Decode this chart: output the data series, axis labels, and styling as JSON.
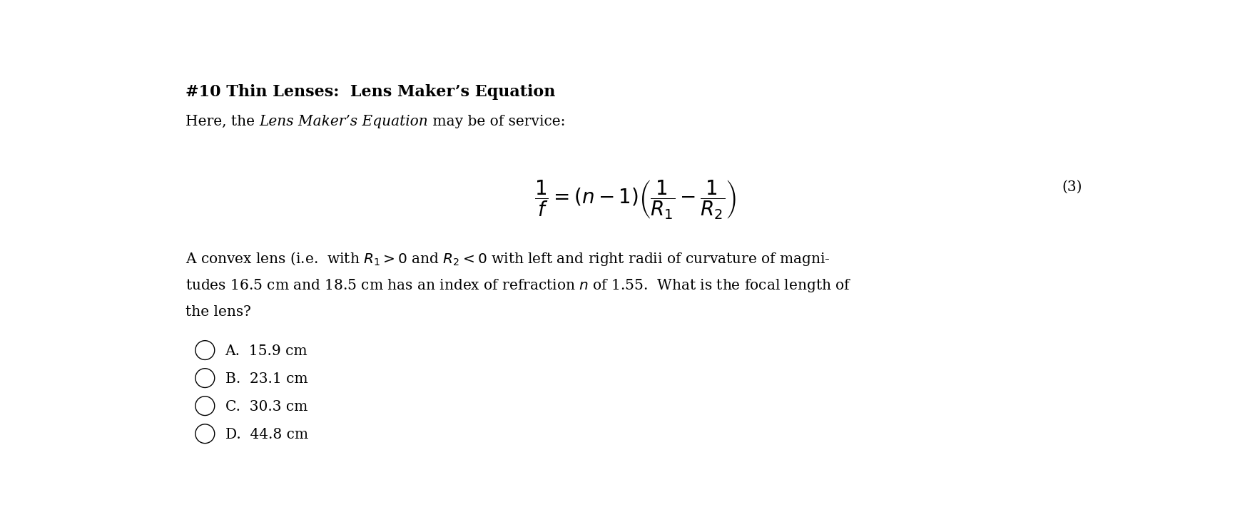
{
  "title": "#10 Thin Lenses:  Lens Maker’s Equation",
  "subtitle_normal1": "Here, the ",
  "subtitle_italic": "Lens Maker’s Equation",
  "subtitle_normal2": " may be of service:",
  "equation": "$\\dfrac{1}{f} = (n - 1)\\left(\\dfrac{1}{R_1} - \\dfrac{1}{R_2}\\right)$",
  "eq_number": "(3)",
  "body_line1": "A convex lens (i.e.  with $R_1 > 0$ and $R_2 < 0$ with left and right radii of curvature of magni-",
  "body_line2": "tudes 16.5 cm and 18.5 cm has an index of refraction $n$ of 1.55.  What is the focal length of",
  "body_line3": "the lens?",
  "choices": [
    "A.  15.9 cm",
    "B.  23.1 cm",
    "C.  30.3 cm",
    "D.  44.8 cm"
  ],
  "bg_color": "#ffffff",
  "text_color": "#000000",
  "font_size_title": 16,
  "font_size_body": 14.5,
  "font_size_eq": 20
}
